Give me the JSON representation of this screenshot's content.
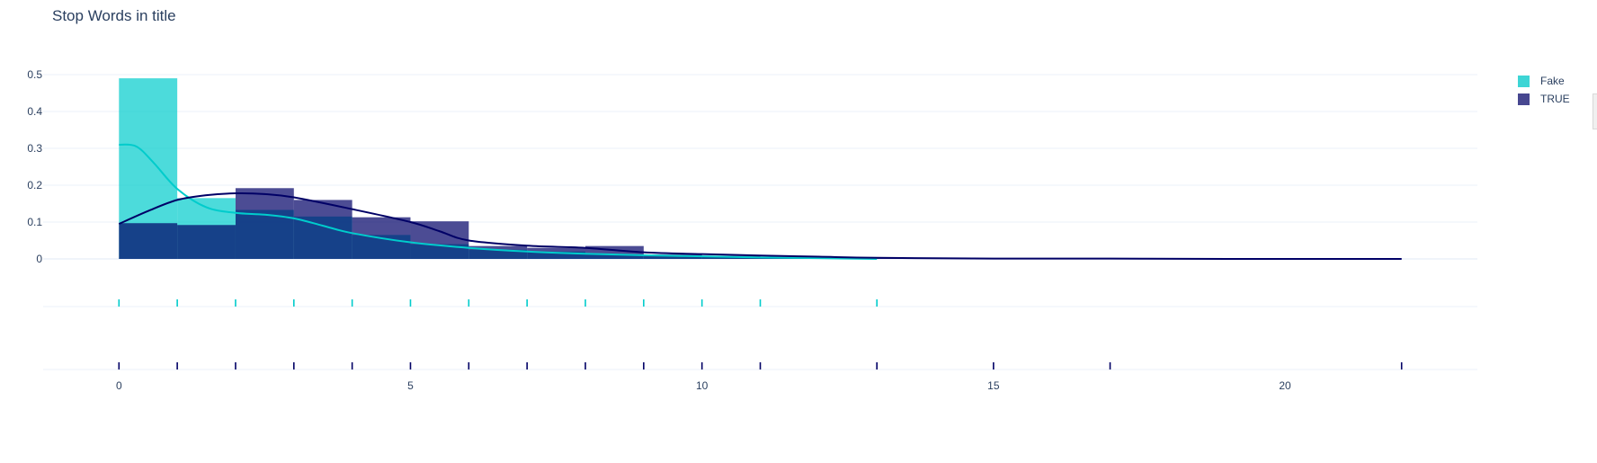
{
  "title": "Stop Words in title",
  "colors": {
    "fake": "#00cccc",
    "true": "#000066",
    "grid": "#ebf0f8",
    "axis_text": "#2a3f5f"
  },
  "legend": [
    {
      "name": "Fake",
      "color": "#3dd5d5"
    },
    {
      "name": "TRUE",
      "color": "#474790"
    }
  ],
  "chart_data": {
    "type": "bar",
    "subtype": "distplot (histogram + kde + rug)",
    "title": "Stop Words in title",
    "xlabel": "",
    "ylabel": "",
    "xlim": [
      -1.3,
      23.3
    ],
    "ylim": [
      0,
      0.5
    ],
    "yticks": [
      0,
      0.1,
      0.2,
      0.3,
      0.4,
      0.5
    ],
    "ytick_labels": [
      "0",
      "0.1",
      "0.2",
      "0.3",
      "0.4",
      "0.5"
    ],
    "xticks": [
      0,
      5,
      10,
      15,
      20
    ],
    "xtick_labels": [
      "0",
      "5",
      "10",
      "15",
      "20"
    ],
    "grid": true,
    "legend_position": "top-right",
    "series": [
      {
        "name": "Fake",
        "color": "#00cccc",
        "histogram": {
          "bin_edges": [
            0,
            1,
            2,
            3,
            4,
            5,
            6,
            7,
            8,
            9,
            10,
            11,
            12,
            13
          ],
          "values": [
            0.49,
            0.165,
            0.133,
            0.115,
            0.065,
            0.04,
            0.025,
            0.02,
            0.012,
            0.007,
            0.005,
            0.003,
            0.002
          ]
        },
        "kde": {
          "x": [
            0,
            0.3,
            0.6,
            1,
            1.5,
            2,
            2.5,
            3,
            3.5,
            4,
            5,
            6,
            7,
            8,
            9,
            10,
            11,
            12,
            13
          ],
          "y": [
            0.31,
            0.305,
            0.26,
            0.19,
            0.14,
            0.125,
            0.12,
            0.11,
            0.09,
            0.07,
            0.045,
            0.03,
            0.02,
            0.014,
            0.01,
            0.007,
            0.004,
            0.002,
            0.0
          ]
        },
        "rug": [
          0,
          1,
          2,
          3,
          4,
          5,
          6,
          7,
          8,
          9,
          10,
          11,
          13
        ]
      },
      {
        "name": "TRUE",
        "color": "#000066",
        "histogram": {
          "bin_edges": [
            0,
            1,
            2,
            3,
            4,
            5,
            6,
            7,
            8,
            9,
            10,
            11,
            12,
            13,
            14,
            15,
            16,
            17,
            18,
            19,
            20,
            21,
            22
          ],
          "values": [
            0.097,
            0.092,
            0.192,
            0.16,
            0.113,
            0.102,
            0.035,
            0.03,
            0.035,
            0.012,
            0.008,
            0.005,
            0.003,
            0.002,
            0.002,
            0.001,
            0.001,
            0.001,
            0.001,
            0.001,
            0.001,
            0.001
          ]
        },
        "kde": {
          "x": [
            0,
            0.5,
            1,
            1.5,
            2,
            2.5,
            3,
            4,
            5,
            5.5,
            6,
            7,
            8,
            9,
            10,
            11,
            12,
            13,
            15,
            17,
            19,
            22
          ],
          "y": [
            0.095,
            0.13,
            0.16,
            0.173,
            0.178,
            0.176,
            0.167,
            0.135,
            0.1,
            0.075,
            0.05,
            0.036,
            0.03,
            0.018,
            0.013,
            0.009,
            0.006,
            0.003,
            0.001,
            0.001,
            0.0,
            0.0
          ]
        },
        "rug": [
          0,
          1,
          2,
          3,
          4,
          5,
          6,
          7,
          8,
          9,
          10,
          11,
          13,
          15,
          17,
          22
        ]
      }
    ]
  }
}
